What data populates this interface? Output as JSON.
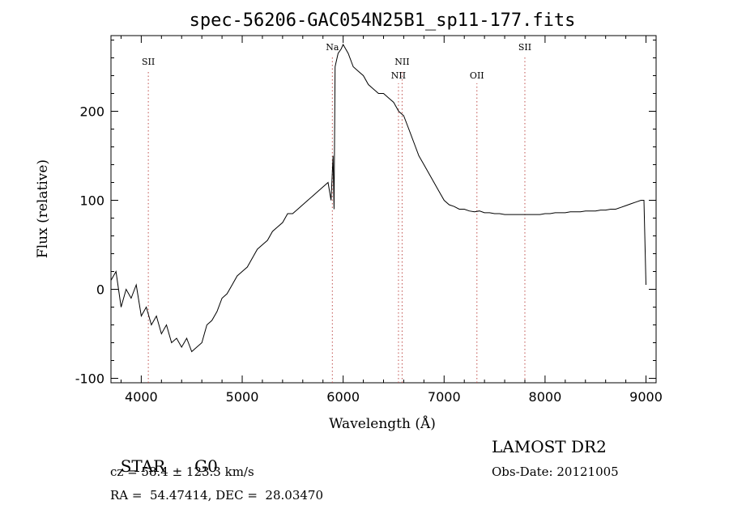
{
  "chart_data": {
    "type": "line",
    "title": "spec-56206-GAC054N25B1_sp11-177.fits",
    "xlabel": "Wavelength (Å)",
    "ylabel": "Flux (relative)",
    "xlim": [
      3700,
      9100
    ],
    "ylim": [
      -105,
      285
    ],
    "xticks": [
      4000,
      5000,
      6000,
      7000,
      8000,
      9000
    ],
    "yticks": [
      -100,
      0,
      100,
      200
    ],
    "grid": false,
    "line_color": "#000000",
    "marker_color": "#c0504d",
    "spectral_lines": [
      {
        "label": "SII",
        "x": 4070,
        "row": 1
      },
      {
        "label": "Na",
        "x": 5893,
        "row": 0
      },
      {
        "label": "NII",
        "x": 6548,
        "row": 2
      },
      {
        "label": "NII",
        "x": 6584,
        "row": 1
      },
      {
        "label": "OII",
        "x": 7325,
        "row": 2
      },
      {
        "label": "SII",
        "x": 7800,
        "row": 0
      }
    ],
    "series": [
      {
        "x": [
          3700,
          3750,
          3800,
          3850,
          3900,
          3950,
          4000,
          4050,
          4100,
          4150,
          4200,
          4250,
          4300,
          4350,
          4400,
          4450,
          4500,
          4550,
          4600,
          4650,
          4700,
          4750,
          4800,
          4850,
          4900,
          4950,
          5000,
          5050,
          5100,
          5150,
          5200,
          5250,
          5300,
          5350,
          5400,
          5450,
          5500,
          5550,
          5600,
          5650,
          5700,
          5750,
          5800,
          5850,
          5880,
          5900,
          5910,
          5920,
          5930,
          5950,
          5980,
          6000,
          6050,
          6100,
          6150,
          6200,
          6250,
          6300,
          6350,
          6400,
          6450,
          6500,
          6550,
          6600,
          6650,
          6700,
          6750,
          6800,
          6850,
          6900,
          6950,
          7000,
          7050,
          7100,
          7150,
          7200,
          7250,
          7300,
          7350,
          7400,
          7450,
          7500,
          7550,
          7600,
          7650,
          7700,
          7750,
          7800,
          7850,
          7900,
          7950,
          8000,
          8050,
          8100,
          8150,
          8200,
          8250,
          8300,
          8350,
          8400,
          8450,
          8500,
          8550,
          8600,
          8650,
          8700,
          8750,
          8800,
          8850,
          8900,
          8950,
          8980,
          9000
        ],
        "y": [
          10,
          20,
          -20,
          0,
          -10,
          5,
          -30,
          -20,
          -40,
          -30,
          -50,
          -40,
          -60,
          -55,
          -65,
          -55,
          -70,
          -65,
          -60,
          -40,
          -35,
          -25,
          -10,
          -5,
          5,
          15,
          20,
          25,
          35,
          45,
          50,
          55,
          65,
          70,
          75,
          85,
          85,
          90,
          95,
          100,
          105,
          110,
          115,
          120,
          100,
          150,
          90,
          250,
          255,
          265,
          270,
          275,
          265,
          250,
          245,
          240,
          230,
          225,
          220,
          220,
          215,
          210,
          200,
          195,
          180,
          165,
          150,
          140,
          130,
          120,
          110,
          100,
          95,
          93,
          90,
          90,
          88,
          87,
          88,
          86,
          86,
          85,
          85,
          84,
          84,
          84,
          84,
          84,
          84,
          84,
          84,
          85,
          85,
          86,
          86,
          86,
          87,
          87,
          87,
          88,
          88,
          88,
          89,
          89,
          90,
          90,
          92,
          94,
          96,
          98,
          100,
          100,
          5
        ]
      }
    ]
  },
  "info": {
    "object_type": "STAR",
    "subclass": "G0",
    "survey": "LAMOST DR2",
    "cz": "cz = 58.4 ± 123.3 km/s",
    "obs_date": "Obs-Date: 20121005",
    "coords": "RA =  54.47414, DEC =  28.03470"
  }
}
